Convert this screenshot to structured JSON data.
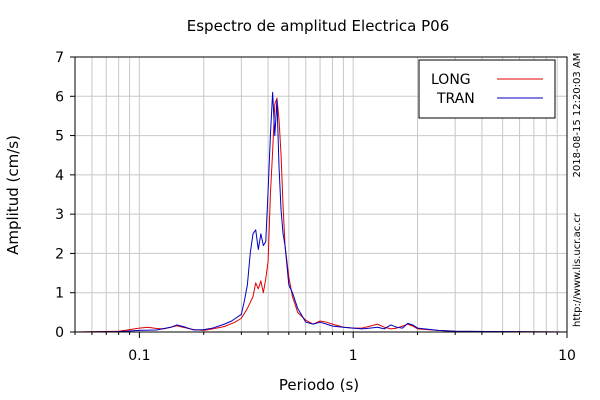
{
  "chart_data": {
    "type": "line",
    "title": "Espectro de amplitud Electrica P06",
    "xlabel": "Periodo (s)",
    "ylabel": "Amplitud (cm/s)",
    "xscale": "log",
    "xlim": [
      0.05,
      10
    ],
    "ylim": [
      0,
      7
    ],
    "x_tick_labels": [
      "0.1",
      "1",
      "10"
    ],
    "y_tick_labels": [
      "0",
      "1",
      "2",
      "3",
      "4",
      "5",
      "6",
      "7"
    ],
    "grid": true,
    "legend_position": "top-right",
    "series": [
      {
        "name": "LONG",
        "color": "#e00000",
        "points": [
          [
            0.05,
            0.0
          ],
          [
            0.08,
            0.02
          ],
          [
            0.09,
            0.06
          ],
          [
            0.1,
            0.1
          ],
          [
            0.11,
            0.12
          ],
          [
            0.12,
            0.09
          ],
          [
            0.13,
            0.08
          ],
          [
            0.14,
            0.12
          ],
          [
            0.15,
            0.16
          ],
          [
            0.16,
            0.12
          ],
          [
            0.18,
            0.06
          ],
          [
            0.2,
            0.04
          ],
          [
            0.22,
            0.08
          ],
          [
            0.25,
            0.14
          ],
          [
            0.28,
            0.25
          ],
          [
            0.3,
            0.35
          ],
          [
            0.32,
            0.6
          ],
          [
            0.34,
            0.9
          ],
          [
            0.35,
            1.25
          ],
          [
            0.36,
            1.1
          ],
          [
            0.37,
            1.3
          ],
          [
            0.38,
            1.0
          ],
          [
            0.39,
            1.35
          ],
          [
            0.4,
            1.8
          ],
          [
            0.41,
            3.5
          ],
          [
            0.42,
            4.6
          ],
          [
            0.43,
            5.8
          ],
          [
            0.44,
            5.95
          ],
          [
            0.45,
            5.4
          ],
          [
            0.46,
            4.5
          ],
          [
            0.47,
            3.2
          ],
          [
            0.48,
            2.2
          ],
          [
            0.5,
            1.4
          ],
          [
            0.52,
            0.9
          ],
          [
            0.55,
            0.5
          ],
          [
            0.6,
            0.3
          ],
          [
            0.65,
            0.2
          ],
          [
            0.7,
            0.28
          ],
          [
            0.75,
            0.25
          ],
          [
            0.8,
            0.2
          ],
          [
            0.9,
            0.12
          ],
          [
            1.0,
            0.1
          ],
          [
            1.1,
            0.1
          ],
          [
            1.2,
            0.15
          ],
          [
            1.3,
            0.2
          ],
          [
            1.4,
            0.12
          ],
          [
            1.5,
            0.08
          ],
          [
            1.6,
            0.1
          ],
          [
            1.7,
            0.15
          ],
          [
            1.8,
            0.2
          ],
          [
            1.9,
            0.15
          ],
          [
            2.0,
            0.08
          ],
          [
            2.5,
            0.04
          ],
          [
            3.0,
            0.02
          ],
          [
            5.0,
            0.01
          ],
          [
            10.0,
            0.0
          ]
        ]
      },
      {
        "name": "TRAN",
        "color": "#0000c0",
        "points": [
          [
            0.05,
            0.0
          ],
          [
            0.08,
            0.01
          ],
          [
            0.1,
            0.04
          ],
          [
            0.12,
            0.05
          ],
          [
            0.14,
            0.12
          ],
          [
            0.15,
            0.18
          ],
          [
            0.16,
            0.14
          ],
          [
            0.18,
            0.05
          ],
          [
            0.2,
            0.06
          ],
          [
            0.22,
            0.1
          ],
          [
            0.25,
            0.2
          ],
          [
            0.27,
            0.28
          ],
          [
            0.3,
            0.45
          ],
          [
            0.31,
            0.8
          ],
          [
            0.32,
            1.2
          ],
          [
            0.33,
            2.0
          ],
          [
            0.34,
            2.5
          ],
          [
            0.35,
            2.6
          ],
          [
            0.36,
            2.1
          ],
          [
            0.37,
            2.5
          ],
          [
            0.38,
            2.2
          ],
          [
            0.39,
            2.3
          ],
          [
            0.4,
            3.6
          ],
          [
            0.41,
            5.0
          ],
          [
            0.42,
            6.1
          ],
          [
            0.43,
            5.0
          ],
          [
            0.44,
            5.9
          ],
          [
            0.45,
            4.2
          ],
          [
            0.46,
            3.1
          ],
          [
            0.47,
            2.5
          ],
          [
            0.48,
            2.2
          ],
          [
            0.5,
            1.2
          ],
          [
            0.52,
            1.0
          ],
          [
            0.55,
            0.6
          ],
          [
            0.6,
            0.25
          ],
          [
            0.65,
            0.2
          ],
          [
            0.7,
            0.25
          ],
          [
            0.75,
            0.2
          ],
          [
            0.8,
            0.15
          ],
          [
            0.9,
            0.12
          ],
          [
            1.0,
            0.1
          ],
          [
            1.1,
            0.08
          ],
          [
            1.2,
            0.1
          ],
          [
            1.3,
            0.12
          ],
          [
            1.4,
            0.08
          ],
          [
            1.5,
            0.18
          ],
          [
            1.6,
            0.12
          ],
          [
            1.7,
            0.1
          ],
          [
            1.8,
            0.22
          ],
          [
            1.9,
            0.18
          ],
          [
            2.0,
            0.1
          ],
          [
            2.5,
            0.04
          ],
          [
            3.0,
            0.02
          ],
          [
            5.0,
            0.01
          ],
          [
            10.0,
            0.0
          ]
        ]
      }
    ]
  },
  "side_labels": {
    "timestamp": "2018-08-15 12:20:03 AM",
    "url": "http://www.lis.ucr.ac.cr"
  }
}
